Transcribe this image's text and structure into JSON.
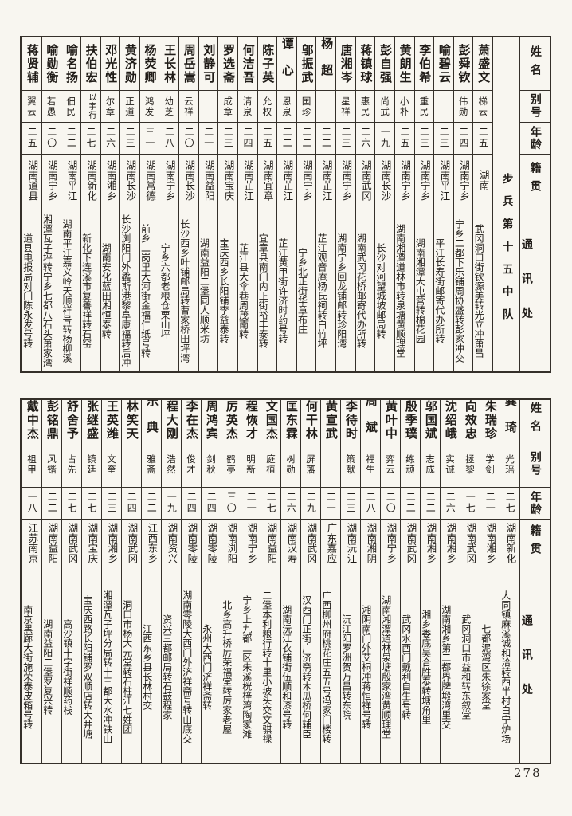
{
  "page": {
    "number": "278"
  },
  "headers": {
    "name": "姓名",
    "alias": "别号",
    "age": "年龄",
    "origin": "籍贯",
    "address": "通讯处"
  },
  "sections": [
    {
      "label": "步兵第十五中队",
      "entries": [
        {
          "name": "萧盛文",
          "alias": "梯云",
          "age": "二五",
          "origin": "湖南",
          "address": "武冈洞口街钦源美转光立冲萧昌"
        },
        {
          "name": "彭舜钦",
          "alias": "伟勋",
          "age": "二四",
          "origin": "湖南宁乡",
          "address": "宁乡二都下乐铺周协盛转彭家冲交"
        },
        {
          "name": "喻碧云",
          "alias": "",
          "age": "二三",
          "origin": "湖南平江",
          "address": "平江长寿街邮寄代办所转"
        },
        {
          "name": "李伯希",
          "alias": "重民",
          "age": "二三",
          "origin": "湖南宁乡",
          "address": "湖南湘潭大屯营转棉花园"
        },
        {
          "name": "黄朗生",
          "alias": "小朴",
          "age": "二五",
          "origin": "湖南宁乡",
          "address": "湖南湘潭道林市转泉塘黄顺理堂"
        },
        {
          "name": "彭自强",
          "alias": "尚武",
          "age": "一九",
          "origin": "湖南长沙",
          "address": "长沙对河望城坡邮局转"
        },
        {
          "name": "蒋镇球",
          "alias": "惠民",
          "age": "二六",
          "origin": "湖南武冈",
          "address": "湖南武冈花桥邮寄代办所转"
        },
        {
          "name": "唐湘岑",
          "alias": "星祥",
          "age": "二三",
          "origin": "湖南宁乡",
          "address": "湖南宁乡回龙铺邮转珍阳湾"
        },
        {
          "name": "杨超",
          "alias": "",
          "age": "二二",
          "origin": "湖南芷江",
          "address": "芷江观音庵杨氏祠转白竹坪"
        },
        {
          "name": "邬振武",
          "alias": "国珍",
          "age": "二二",
          "origin": "湖南宁乡",
          "address": "宁乡北正街华章布庄"
        },
        {
          "name": "谭心",
          "alias": "恩泉",
          "age": "二二",
          "origin": "湖南芷江",
          "address": "芷江黄甲街许济时药号转"
        },
        {
          "name": "陈子英",
          "alias": "允权",
          "age": "二五",
          "origin": "湖南宜章",
          "address": "宜章县南门内正街裕丰泰转"
        },
        {
          "name": "何洁吾",
          "alias": "清泉",
          "age": "二四",
          "origin": "湖南芷江",
          "address": "芷江县大伞巷周茂南转"
        },
        {
          "name": "罗选斋",
          "alias": "成章",
          "age": "二三",
          "origin": "湖南宝庆",
          "address": "宝庆西乡长阳铺李益泰转"
        },
        {
          "name": "刘静可",
          "alias": "",
          "age": "二一",
          "origin": "湖南益阳",
          "address": "湖南益阳二堡同人顺米坊"
        },
        {
          "name": "周岳嵩",
          "alias": "云祥",
          "age": "二〇",
          "origin": "湖南长沙",
          "address": "长沙西乡叶铺邮局转曹家桥田坪湾"
        },
        {
          "name": "王长林",
          "alias": "幼芝",
          "age": "二八",
          "origin": "湖南宁乡",
          "address": "宁乡六都老粮仓栗山坪"
        },
        {
          "name": "杨荧卿",
          "alias": "鸿发",
          "age": "三一",
          "origin": "湖南常德",
          "address": "前乡二岗里大河街金福仁纸号转"
        },
        {
          "name": "黄济勋",
          "alias": "正道",
          "age": "二三",
          "origin": "湖南长沙",
          "address": "长沙浏阳门外蟊斯港黎阜康福转后冲"
        },
        {
          "name": "邓光性",
          "alias": "尔章",
          "age": "二六",
          "origin": "湖南湘乡",
          "address": "湖南安化蓝田湘恒泰转"
        },
        {
          "name": "扶伯宏",
          "alias": "以宇行",
          "age": "二七",
          "origin": "湖南新化",
          "address": "新化下连溪市复善祥转石窑"
        },
        {
          "name": "喻名扬",
          "alias": "佃民",
          "age": "二二",
          "origin": "湖南平江",
          "address": "湖南平江嘉义岭天顺祥号转杨柳溪"
        },
        {
          "name": "喻勋衡",
          "alias": "若愚",
          "age": "二〇",
          "origin": "湖南宁乡",
          "address": "湘潭瓦子坪转宁乡七都八石头萧家湾"
        },
        {
          "name": "蒋贤辅",
          "alias": "翼云",
          "age": "二五",
          "origin": "湖南道县",
          "address": "道县电报局对门陈永发号转"
        }
      ]
    },
    {
      "label": "",
      "entries": [
        {
          "name": "龚琦",
          "alias": "光瑶",
          "age": "二七",
          "origin": "湖南新化",
          "address": "大同镇麻溪诚和洽转西半村白宁炉场"
        },
        {
          "name": "朱瑞珍",
          "alias": "学剑",
          "age": "二一",
          "origin": "湖南湘乡",
          "address": "七都泥湾区朱徐家堂"
        },
        {
          "name": "向效忠",
          "alias": "拯黎",
          "age": "一七",
          "origin": "湖南武冈",
          "address": "武冈洞口市益和转东叙堂"
        },
        {
          "name": "沈绍峨",
          "alias": "实诚",
          "age": "二六",
          "origin": "湖南湘乡",
          "address": "湖南湘乡第二都界牌塅湾里交"
        },
        {
          "name": "邬国斌",
          "alias": "志成",
          "age": "二二",
          "origin": "湖南湘乡",
          "address": "湘乡娄底吴合胜泰转塘角里"
        },
        {
          "name": "殷季璞",
          "alias": "练顽",
          "age": "二二",
          "origin": "湖南武冈",
          "address": "武冈水西门戴利自生号转"
        },
        {
          "name": "黄叶中",
          "alias": "弈云",
          "age": "二〇",
          "origin": "湖南宁乡",
          "address": "湖南湘潭道林泉塘殷家湾黄顺理堂"
        },
        {
          "name": "周斌",
          "alias": "福生",
          "age": "二八",
          "origin": "湖南湘阴",
          "address": "湘阴南门外艾桐冲蒋恒祥号转"
        },
        {
          "name": "李待时",
          "alias": "策献",
          "age": "二三",
          "origin": "湖南沅江",
          "address": "沅江阳罗洲贺万昌转东院"
        },
        {
          "name": "黄宣武",
          "alias": "",
          "age": "二一",
          "origin": "广东嘉应",
          "address": "广西柳州府桃花庄五五号冯家门楼转"
        },
        {
          "name": "何干林",
          "alias": "屏藩",
          "age": "二九",
          "origin": "湖南武冈",
          "address": "汉西门正街广济斋转木瓜桥何辅臣"
        },
        {
          "name": "匡东霖",
          "alias": "树勋",
          "age": "二六",
          "origin": "湖南汉寿",
          "address": "湖南沅江衣铺街伍顺和漆号转"
        },
        {
          "name": "文国杰",
          "alias": "庭植",
          "age": "二七",
          "origin": "湖南益阳",
          "address": "二堡本利粮行转十里小坡头交文骐禄"
        },
        {
          "name": "程恢才",
          "alias": "明新",
          "age": "二一",
          "origin": "湖南宁乡",
          "address": "宁乡上九都二区朱溪桄梓湾陶家滩"
        },
        {
          "name": "厉英杰",
          "alias": "鹤亭",
          "age": "三〇",
          "origin": "湖南浏阳",
          "address": "北乡高升桥厉荣福堂转厉家老屋"
        },
        {
          "name": "周鸿宾",
          "alias": "剑秋",
          "age": "二四",
          "origin": "湖南零陵",
          "address": "永州大西门济祥斋转"
        },
        {
          "name": "李在杰",
          "alias": "俊才",
          "age": "二四",
          "origin": "湖南零陵",
          "address": "湖南零陵大西门外济祥斋号转山底交"
        },
        {
          "name": "程大刚",
          "alias": "浩然",
          "age": "一九",
          "origin": "湖南资兴",
          "address": "资兴三都邮局转石鼓程家"
        },
        {
          "name": "乐典",
          "alias": "雅斋",
          "age": "二二",
          "origin": "江西东乡",
          "address": "江西东乡县长林村交"
        },
        {
          "name": "林笑天",
          "alias": "",
          "age": "二四",
          "origin": "湖南武冈",
          "address": "洞口市杨大元堂转石柱江七姓团"
        },
        {
          "name": "王英潍",
          "alias": "文奎",
          "age": "二三",
          "origin": "湖南湘乡",
          "address": "湘潭瓦子坪分局转十三都大水冲铁山"
        },
        {
          "name": "张继盛",
          "alias": "镇廷",
          "age": "二七",
          "origin": "湖南宝庆",
          "address": "宝庆西路长阳铺罗双顺店转大井塘"
        },
        {
          "name": "舒舍予",
          "alias": "占先",
          "age": "二七",
          "origin": "湖南武冈",
          "address": "高沙镇十字街祥顺药栈"
        },
        {
          "name": "彭铭鼎",
          "alias": "风锴",
          "age": "二二",
          "origin": "湖南益阳",
          "address": "湖南益阳二堡罗复兴转"
        },
        {
          "name": "戴中杰",
          "alias": "祖甲",
          "age": "一八",
          "origin": "江苏南京",
          "address": "南京黑廊大街施荣泰皮箱号转"
        }
      ]
    }
  ]
}
